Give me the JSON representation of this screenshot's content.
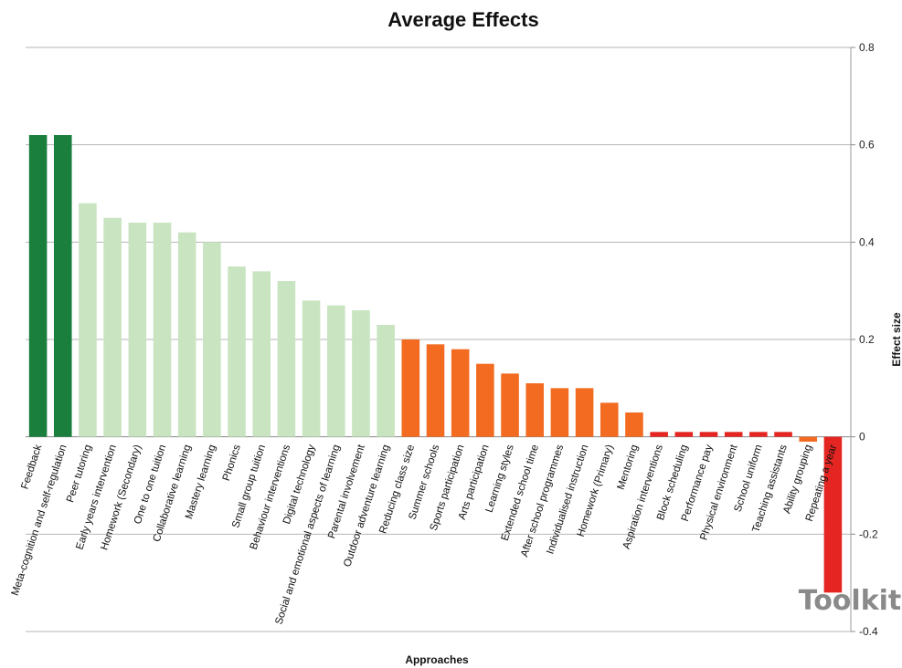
{
  "chart_data": {
    "type": "bar",
    "title": "Average Effects",
    "xlabel": "Approaches",
    "ylabel": "Effect size",
    "ylim": [
      -0.4,
      0.8
    ],
    "yticks": [
      0.8,
      0.6,
      0.4,
      0.2,
      0,
      -0.2,
      -0.4
    ],
    "ytick_labels": [
      "0.8",
      "0.6",
      "0.4",
      "0.2",
      "0",
      "-0.2",
      "-0.4"
    ],
    "y_axis_position": "right",
    "grid": true,
    "categories": [
      "Feedback",
      "Meta-cognition and self-regulation",
      "Peer tutoring",
      "Early years intervention",
      "Homework (Secondary)",
      "One to one tuition",
      "Collaborative learning",
      "Mastery learning",
      "Phonics",
      "Small group tuition",
      "Behaviour interventions",
      "Digital technology",
      "Social and emotional aspects of learning",
      "Parental involvement",
      "Outdoor adventure learning",
      "Reducing class size",
      "Summer schools",
      "Sports participation",
      "Arts participation",
      "Learning styles",
      "Extended school time",
      "After school programmes",
      "Individualised instruction",
      "Homework (Primary)",
      "Mentoring",
      "Aspiration interventions",
      "Block scheduling",
      "Performance pay",
      "Physical environment",
      "School uniform",
      "Teaching assistants",
      "Ability grouping",
      "Repeating a year"
    ],
    "values": [
      0.62,
      0.62,
      0.48,
      0.45,
      0.44,
      0.44,
      0.42,
      0.4,
      0.35,
      0.34,
      0.32,
      0.28,
      0.27,
      0.26,
      0.23,
      0.2,
      0.19,
      0.18,
      0.15,
      0.13,
      0.11,
      0.1,
      0.1,
      0.07,
      0.05,
      0.01,
      0.01,
      0.01,
      0.01,
      0.01,
      0.01,
      -0.01,
      -0.32
    ],
    "colors": [
      "#1a7f3d",
      "#1a7f3d",
      "#c9e4c1",
      "#c9e4c1",
      "#c9e4c1",
      "#c9e4c1",
      "#c9e4c1",
      "#c9e4c1",
      "#c9e4c1",
      "#c9e4c1",
      "#c9e4c1",
      "#c9e4c1",
      "#c9e4c1",
      "#c9e4c1",
      "#c9e4c1",
      "#f26b21",
      "#f26b21",
      "#f26b21",
      "#f26b21",
      "#f26b21",
      "#f26b21",
      "#f26b21",
      "#f26b21",
      "#f26b21",
      "#f26b21",
      "#e52521",
      "#e52521",
      "#e52521",
      "#e52521",
      "#e52521",
      "#e52521",
      "#f26b21",
      "#e52521"
    ]
  },
  "watermark": "Toolkit"
}
